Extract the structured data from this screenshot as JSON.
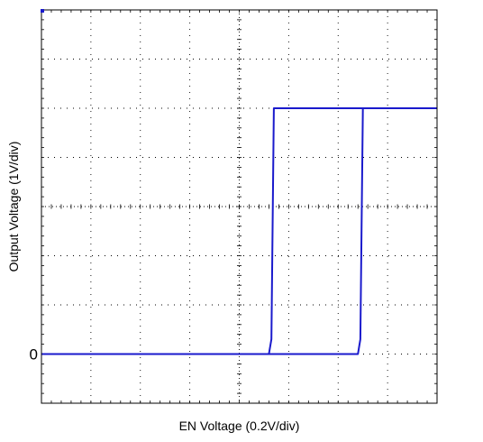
{
  "chart_data": {
    "type": "line",
    "title": "",
    "xlabel": "EN Voltage (0.2V/div)",
    "ylabel": "Output Voltage (1V/div)",
    "y_marker_label": "0",
    "grid": true,
    "grid_style": "dotted",
    "x_divisions": 8,
    "y_divisions": 8,
    "xlim": [
      0,
      8
    ],
    "ylim": [
      -1,
      7
    ],
    "series": [
      {
        "color": "#1a1acc",
        "x": [
          0,
          4.6,
          4.65,
          4.7,
          6.4,
          6.45,
          8
        ],
        "y": [
          0,
          0,
          0.3,
          5.0,
          5.0,
          5.0,
          5.0
        ]
      },
      {
        "color": "#1a1acc",
        "x": [
          0,
          6.4,
          6.45,
          6.5,
          8
        ],
        "y": [
          0,
          0,
          0.3,
          5.0,
          5.0
        ]
      }
    ]
  }
}
